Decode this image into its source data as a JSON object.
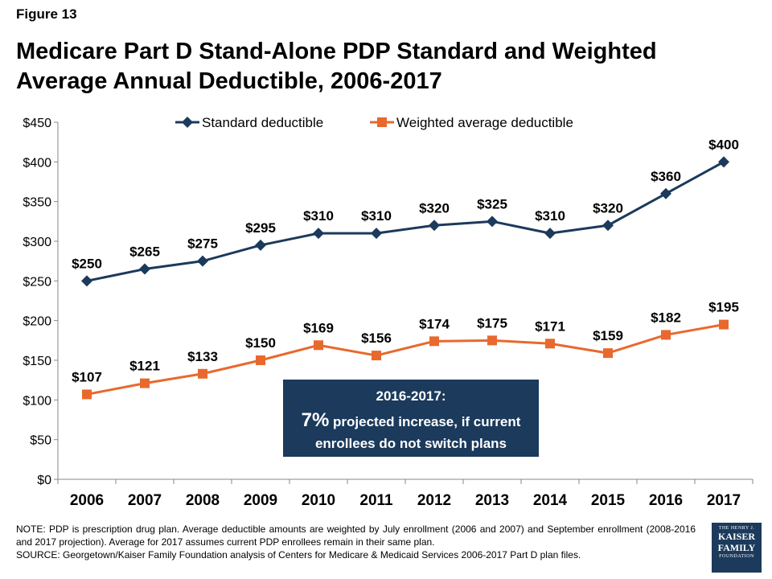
{
  "figure_label": "Figure 13",
  "title": "Medicare Part D Stand-Alone PDP Standard and Weighted Average Annual Deductible, 2006-2017",
  "callout": {
    "line1": "2016-2017:",
    "big": "7%",
    "line2_rest": " projected increase, if current",
    "line3": "enrollees do not switch plans"
  },
  "footnote": {
    "note": "NOTE: PDP is prescription drug plan. Average deductible amounts are weighted by July enrollment (2006 and 2007) and September enrollment (2008-2016 and 2017 projection). Average for 2017 assumes current PDP enrollees remain in their same plan.",
    "source": "SOURCE: Georgetown/Kaiser Family Foundation analysis of Centers for Medicare & Medicaid Services 2006-2017 Part D plan files."
  },
  "logo": {
    "line1": "THE HENRY J.",
    "line2": "KAISER",
    "line3": "FAMILY",
    "line4": "FOUNDATION"
  },
  "colors": {
    "standard": "#1b3a5c",
    "weighted": "#e8692d",
    "callout_bg": "#1b3a5c"
  },
  "chart_data": {
    "type": "line",
    "categories": [
      "2006",
      "2007",
      "2008",
      "2009",
      "2010",
      "2011",
      "2012",
      "2013",
      "2014",
      "2015",
      "2016",
      "2017"
    ],
    "series": [
      {
        "name": "Standard deductible",
        "marker": "diamond",
        "values": [
          250,
          265,
          275,
          295,
          310,
          310,
          320,
          325,
          310,
          320,
          360,
          400
        ]
      },
      {
        "name": "Weighted average deductible",
        "marker": "square",
        "values": [
          107,
          121,
          133,
          150,
          169,
          156,
          174,
          175,
          171,
          159,
          182,
          195
        ]
      }
    ],
    "ylim": [
      0,
      450
    ],
    "yticks": [
      0,
      50,
      100,
      150,
      200,
      250,
      300,
      350,
      400,
      450
    ],
    "ytick_labels": [
      "$0",
      "$50",
      "$100",
      "$150",
      "$200",
      "$250",
      "$300",
      "$350",
      "$400",
      "$450"
    ],
    "data_label_prefix": "$",
    "legend": "top-center",
    "grid": false
  }
}
